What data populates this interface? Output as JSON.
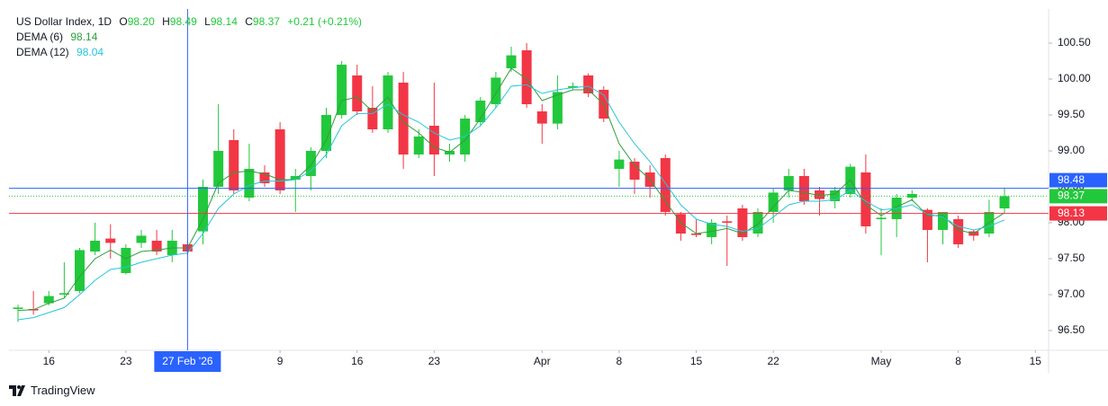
{
  "chart_data": {
    "type": "candlestick",
    "title": "US Dollar Index, 1D",
    "ohlc_header": {
      "letters": [
        "O",
        "H",
        "L",
        "C"
      ],
      "labels": [
        "98.20",
        "98.49",
        "98.14",
        "98.37"
      ],
      "change": "+0.21 (+0.21%)"
    },
    "up_color": "#22c83c",
    "down_color": "#f23645",
    "candles": {
      "open": [
        96.8,
        96.8,
        96.88,
        97.0,
        97.05,
        97.6,
        97.78,
        97.3,
        97.72,
        97.75,
        97.55,
        97.7,
        97.88,
        98.5,
        99.15,
        98.35,
        98.7,
        99.3,
        98.6,
        98.65,
        99.0,
        99.5,
        100.05,
        99.6,
        99.3,
        99.95,
        98.95,
        99.35,
        98.95,
        98.95,
        99.4,
        99.65,
        100.15,
        100.4,
        99.55,
        99.38,
        99.88,
        100.05,
        99.85,
        98.75,
        98.85,
        98.7,
        98.9,
        98.12,
        97.85,
        97.8,
        98.02,
        98.2,
        97.85,
        98.15,
        98.45,
        98.65,
        98.45,
        98.3,
        98.4,
        98.7,
        98.05,
        98.05,
        98.35,
        98.18,
        97.9,
        98.05,
        97.88,
        97.85,
        98.2
      ],
      "high": [
        96.86,
        97.05,
        97.05,
        97.45,
        97.65,
        98.0,
        97.98,
        97.7,
        97.9,
        97.9,
        97.9,
        97.75,
        98.6,
        99.65,
        99.3,
        99.1,
        98.8,
        99.4,
        98.75,
        99.05,
        99.6,
        100.25,
        100.2,
        99.9,
        100.1,
        100.1,
        99.3,
        99.95,
        99.1,
        99.5,
        99.75,
        100.1,
        100.45,
        100.5,
        99.65,
        100.05,
        99.95,
        100.08,
        99.9,
        99.0,
        98.9,
        98.8,
        98.95,
        98.15,
        98.05,
        98.05,
        98.1,
        98.25,
        98.2,
        98.48,
        98.75,
        98.75,
        98.5,
        98.5,
        98.82,
        98.95,
        98.2,
        98.4,
        98.45,
        98.2,
        98.15,
        98.1,
        97.9,
        98.32,
        98.49
      ],
      "low": [
        96.62,
        96.72,
        96.85,
        96.95,
        97.02,
        97.55,
        97.5,
        97.28,
        97.65,
        97.55,
        97.45,
        97.55,
        97.7,
        98.4,
        98.4,
        98.3,
        98.5,
        98.4,
        98.15,
        98.45,
        98.9,
        99.45,
        99.5,
        99.25,
        99.25,
        98.75,
        98.9,
        98.65,
        98.85,
        98.85,
        99.35,
        99.6,
        100.1,
        99.6,
        99.1,
        99.3,
        99.85,
        99.75,
        99.4,
        98.5,
        98.4,
        98.35,
        98.1,
        97.75,
        97.8,
        97.7,
        97.4,
        97.75,
        97.8,
        98.0,
        98.35,
        98.25,
        98.1,
        98.2,
        98.35,
        97.85,
        97.55,
        97.8,
        98.3,
        97.45,
        97.7,
        97.65,
        97.75,
        97.8,
        98.14
      ],
      "close": [
        96.82,
        96.78,
        96.98,
        97.02,
        97.62,
        97.75,
        97.72,
        97.65,
        97.82,
        97.6,
        97.75,
        97.6,
        98.5,
        99.0,
        98.45,
        98.75,
        98.55,
        98.45,
        98.65,
        99.0,
        99.5,
        100.2,
        99.55,
        99.3,
        100.05,
        98.95,
        99.2,
        98.95,
        99.0,
        99.45,
        99.7,
        100.02,
        100.33,
        99.65,
        99.38,
        99.82,
        99.9,
        99.8,
        99.45,
        98.88,
        98.6,
        98.5,
        98.15,
        97.85,
        97.83,
        98.0,
        98.0,
        97.8,
        98.15,
        98.42,
        98.65,
        98.3,
        98.33,
        98.45,
        98.78,
        97.95,
        98.07,
        98.35,
        98.4,
        97.9,
        98.15,
        97.7,
        97.82,
        98.15,
        98.37
      ]
    },
    "series": [
      {
        "name": "DEMA (6)",
        "color": "#2e9e3e",
        "values": [
          96.78,
          96.79,
          96.88,
          96.95,
          97.25,
          97.5,
          97.62,
          97.5,
          97.6,
          97.62,
          97.65,
          97.65,
          98.05,
          98.55,
          98.7,
          98.72,
          98.68,
          98.6,
          98.6,
          98.8,
          99.15,
          99.7,
          99.75,
          99.55,
          99.75,
          99.4,
          99.25,
          99.05,
          98.98,
          99.15,
          99.45,
          99.8,
          100.15,
          100.0,
          99.7,
          99.78,
          99.85,
          99.85,
          99.65,
          99.1,
          98.8,
          98.6,
          98.3,
          98.0,
          97.85,
          97.88,
          97.92,
          97.85,
          97.98,
          98.22,
          98.45,
          98.42,
          98.38,
          98.4,
          98.6,
          98.25,
          98.1,
          98.22,
          98.32,
          98.1,
          98.1,
          97.9,
          97.85,
          98.0,
          98.14
        ]
      },
      {
        "name": "DEMA (12)",
        "color": "#26c6da",
        "values": [
          96.65,
          96.68,
          96.75,
          96.82,
          97.0,
          97.2,
          97.35,
          97.38,
          97.45,
          97.5,
          97.55,
          97.58,
          97.85,
          98.2,
          98.4,
          98.52,
          98.58,
          98.58,
          98.6,
          98.72,
          98.95,
          99.35,
          99.52,
          99.52,
          99.65,
          99.5,
          99.4,
          99.25,
          99.15,
          99.2,
          99.35,
          99.6,
          99.9,
          99.92,
          99.8,
          99.85,
          99.88,
          99.9,
          99.78,
          99.4,
          99.1,
          98.85,
          98.55,
          98.25,
          98.05,
          97.98,
          97.95,
          97.88,
          97.92,
          98.08,
          98.25,
          98.3,
          98.3,
          98.32,
          98.45,
          98.3,
          98.18,
          98.2,
          98.25,
          98.12,
          98.08,
          97.95,
          97.9,
          97.95,
          98.04
        ]
      }
    ],
    "ylim": [
      96.225,
      100.975
    ],
    "yticks": [
      {
        "value": 96.5,
        "label": "96.50"
      },
      {
        "value": 97,
        "label": "97.00"
      },
      {
        "value": 97.5,
        "label": "97.50"
      },
      {
        "value": 98,
        "label": "98.00"
      },
      {
        "value": 98.5,
        "label": "98.50"
      },
      {
        "value": 99,
        "label": "99.00"
      },
      {
        "value": 99.5,
        "label": "99.50"
      },
      {
        "value": 100,
        "label": "100.00"
      },
      {
        "value": 100.5,
        "label": "100.50"
      }
    ],
    "xlim": [
      -0.584,
      66.86
    ],
    "xticks": [
      {
        "value": 2,
        "label": "16"
      },
      {
        "value": 7,
        "label": "23"
      },
      {
        "value": 17,
        "label": "9"
      },
      {
        "value": 22,
        "label": "16"
      },
      {
        "value": 27,
        "label": "23"
      },
      {
        "value": 34,
        "label": "Apr"
      },
      {
        "value": 39,
        "label": "8"
      },
      {
        "value": 44,
        "label": "15"
      },
      {
        "value": 49,
        "label": "22"
      },
      {
        "value": 56,
        "label": "May"
      },
      {
        "value": 61,
        "label": "8"
      },
      {
        "value": 66,
        "label": "15"
      }
    ],
    "crosshair": {
      "x": {
        "value": 11,
        "label": "27 Feb '26"
      },
      "y": 98.48,
      "color": "#2962ff"
    },
    "price_lines": [
      {
        "value": 98.37,
        "color": "#22c83c",
        "style": "dotted"
      },
      {
        "value": 98.13,
        "color": "#f23645",
        "style": "solid"
      }
    ],
    "brand": "TradingView"
  }
}
